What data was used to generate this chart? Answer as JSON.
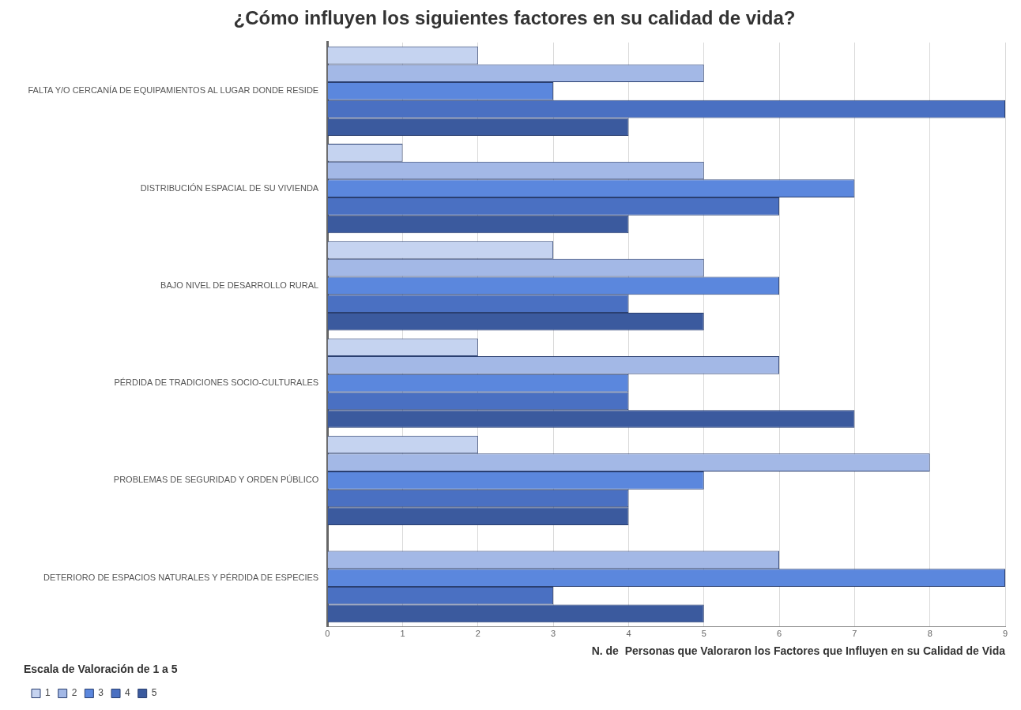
{
  "chart_data": {
    "type": "bar",
    "orientation": "horizontal",
    "title": "¿Cómo influyen los siguientes factores en su calidad de vida?",
    "xlabel": "N. de  Personas que Valoraron los Factores que Influyen en su Calidad de Vida",
    "legend_title": "Escala de Valoración de 1 a 5",
    "legend": "bottom left",
    "grid": "x",
    "categories": [
      "FALTA Y/O CERCANÍA DE EQUIPAMIENTOS AL LUGAR DONDE RESIDE",
      "DISTRIBUCIÓN ESPACIAL DE SU VIVIENDA",
      "BAJO NIVEL DE DESARROLLO RURAL",
      "PÉRDIDA DE TRADICIONES SOCIO-CULTURALES",
      "PROBLEMAS DE SEGURIDAD Y ORDEN PÚBLICO",
      "DETERIORO DE ESPACIOS NATURALES Y PÉRDIDA DE ESPECIES"
    ],
    "series": [
      {
        "name": "1",
        "color": "#c5d3f0",
        "values": [
          2,
          1,
          3,
          2,
          2,
          0
        ]
      },
      {
        "name": "2",
        "color": "#a3b8e6",
        "values": [
          5,
          5,
          5,
          6,
          8,
          6
        ]
      },
      {
        "name": "3",
        "color": "#5b87dd",
        "values": [
          3,
          7,
          6,
          4,
          5,
          9
        ]
      },
      {
        "name": "4",
        "color": "#4a70c2",
        "values": [
          9,
          6,
          4,
          4,
          4,
          3
        ]
      },
      {
        "name": "5",
        "color": "#3b5a9e",
        "values": [
          4,
          4,
          5,
          7,
          4,
          5
        ]
      }
    ],
    "xlim": [
      0,
      9
    ],
    "xticks": [
      0,
      1,
      2,
      3,
      4,
      5,
      6,
      7,
      8,
      9
    ]
  }
}
